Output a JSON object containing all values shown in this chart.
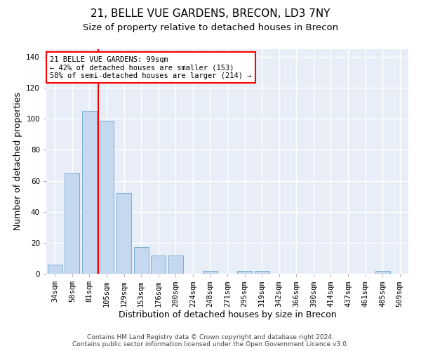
{
  "title": "21, BELLE VUE GARDENS, BRECON, LD3 7NY",
  "subtitle": "Size of property relative to detached houses in Brecon",
  "xlabel": "Distribution of detached houses by size in Brecon",
  "ylabel": "Number of detached properties",
  "bar_labels": [
    "34sqm",
    "58sqm",
    "81sqm",
    "105sqm",
    "129sqm",
    "153sqm",
    "176sqm",
    "200sqm",
    "224sqm",
    "248sqm",
    "271sqm",
    "295sqm",
    "319sqm",
    "342sqm",
    "366sqm",
    "390sqm",
    "414sqm",
    "437sqm",
    "461sqm",
    "485sqm",
    "509sqm"
  ],
  "bar_values": [
    6,
    65,
    105,
    99,
    52,
    17,
    12,
    12,
    0,
    2,
    0,
    2,
    2,
    0,
    0,
    0,
    0,
    0,
    0,
    2,
    0
  ],
  "bar_color": "#c5d8f0",
  "bar_edge_color": "#7bafd4",
  "background_color": "#ffffff",
  "plot_bg_color": "#e8eef8",
  "grid_color": "#ffffff",
  "vline_x": 2.5,
  "vline_color": "red",
  "annotation_text": "21 BELLE VUE GARDENS: 99sqm\n← 42% of detached houses are smaller (153)\n58% of semi-detached houses are larger (214) →",
  "annotation_box_color": "white",
  "annotation_box_edge_color": "red",
  "ylim": [
    0,
    145
  ],
  "yticks": [
    0,
    20,
    40,
    60,
    80,
    100,
    120,
    140
  ],
  "footer_line1": "Contains HM Land Registry data © Crown copyright and database right 2024.",
  "footer_line2": "Contains public sector information licensed under the Open Government Licence v3.0.",
  "title_fontsize": 11,
  "subtitle_fontsize": 9.5,
  "xlabel_fontsize": 9,
  "ylabel_fontsize": 9,
  "annotation_fontsize": 7.5,
  "footer_fontsize": 6.5,
  "tick_fontsize": 7.5
}
